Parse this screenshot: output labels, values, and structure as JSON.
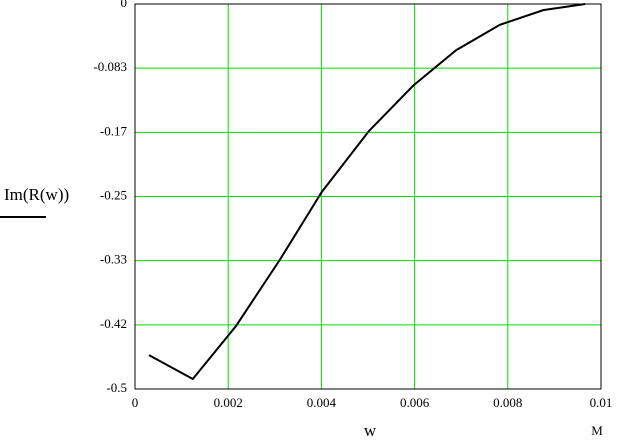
{
  "chart_data": {
    "type": "line",
    "xlabel": "w",
    "x_unit_label": "M",
    "series": [
      {
        "name": "Im(R(w))",
        "color": "#000000",
        "x": [
          0.0003,
          0.00124,
          0.00217,
          0.00311,
          0.00401,
          0.00502,
          0.00597,
          0.00689,
          0.00783,
          0.00876,
          0.00966
        ],
        "values": [
          -0.456,
          -0.487,
          -0.418,
          -0.332,
          -0.244,
          -0.165,
          -0.106,
          -0.06,
          -0.027,
          -0.008,
          0
        ]
      }
    ],
    "xlim": [
      0,
      0.01
    ],
    "xticks": [
      0,
      0.002,
      0.004,
      0.006,
      0.008,
      0.01
    ],
    "ylim": [
      -0.5,
      0
    ],
    "yticks": [
      {
        "value": -0.5,
        "label": "-0.5"
      },
      {
        "value": -0.4167,
        "label": "-0.42"
      },
      {
        "value": -0.3333,
        "label": "-0.33"
      },
      {
        "value": -0.25,
        "label": "-0.25"
      },
      {
        "value": -0.1667,
        "label": "-0.17"
      },
      {
        "value": -0.0833,
        "label": "-0.083"
      },
      0
    ],
    "grid": true,
    "grid_color": "#00dd00"
  }
}
